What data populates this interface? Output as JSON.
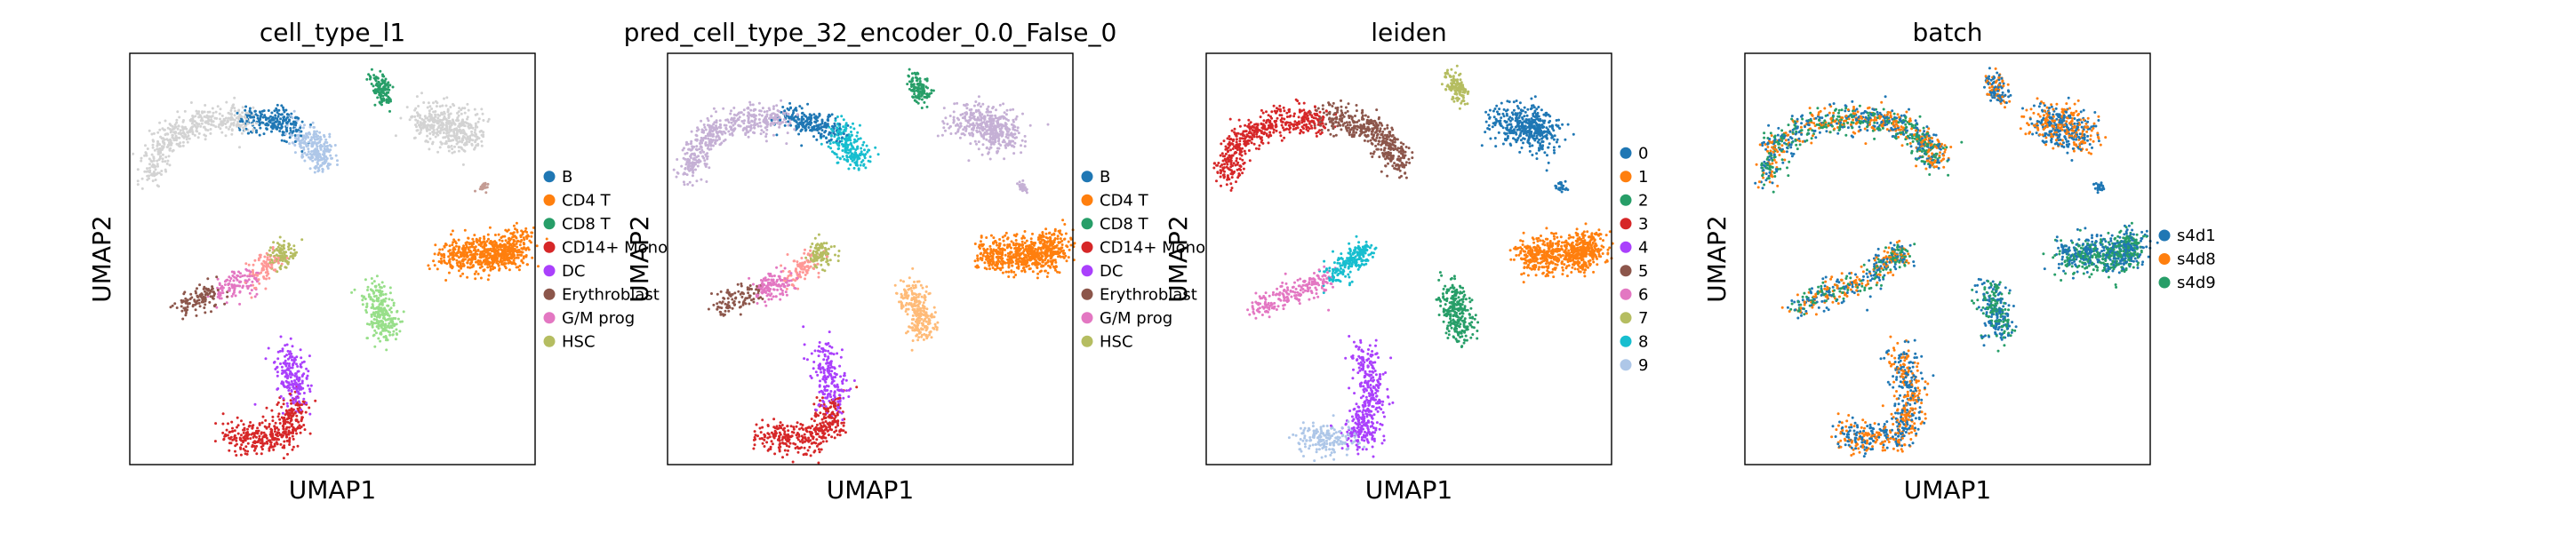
{
  "figure": {
    "background": "#ffffff"
  },
  "chart_data": [
    {
      "type": "scatter",
      "title": "cell_type_l1",
      "xlabel": "UMAP1",
      "ylabel": "UMAP2",
      "grid": false,
      "legend_placement": "right",
      "legend": [
        {
          "label": "B",
          "color": "#1f77b4"
        },
        {
          "label": "CD4 T",
          "color": "#ff7f0e"
        },
        {
          "label": "CD8 T",
          "color": "#279e68"
        },
        {
          "label": "CD14+ Mono",
          "color": "#d62728"
        },
        {
          "label": "DC",
          "color": "#aa40fc"
        },
        {
          "label": "Erythroblast",
          "color": "#8c564b"
        },
        {
          "label": "G/M prog",
          "color": "#e377c2"
        },
        {
          "label": "HSC",
          "color": "#b5bd61"
        }
      ]
    },
    {
      "type": "scatter",
      "title": "pred_cell_type_32_encoder_0.0_False_0",
      "xlabel": "UMAP1",
      "ylabel": "UMAP2",
      "grid": false,
      "legend_placement": "right",
      "legend": [
        {
          "label": "B",
          "color": "#1f77b4"
        },
        {
          "label": "CD4 T",
          "color": "#ff7f0e"
        },
        {
          "label": "CD8 T",
          "color": "#279e68"
        },
        {
          "label": "CD14+ Mono",
          "color": "#d62728"
        },
        {
          "label": "DC",
          "color": "#aa40fc"
        },
        {
          "label": "Erythroblast",
          "color": "#8c564b"
        },
        {
          "label": "G/M prog",
          "color": "#e377c2"
        },
        {
          "label": "HSC",
          "color": "#b5bd61"
        }
      ]
    },
    {
      "type": "scatter",
      "title": "leiden",
      "xlabel": "UMAP1",
      "ylabel": "UMAP2",
      "grid": false,
      "legend_placement": "right",
      "legend": [
        {
          "label": "0",
          "color": "#1f77b4"
        },
        {
          "label": "1",
          "color": "#ff7f0e"
        },
        {
          "label": "2",
          "color": "#279e68"
        },
        {
          "label": "3",
          "color": "#d62728"
        },
        {
          "label": "4",
          "color": "#aa40fc"
        },
        {
          "label": "5",
          "color": "#8c564b"
        },
        {
          "label": "6",
          "color": "#e377c2"
        },
        {
          "label": "7",
          "color": "#b5bd61"
        },
        {
          "label": "8",
          "color": "#17becf"
        },
        {
          "label": "9",
          "color": "#aec7e8"
        }
      ]
    },
    {
      "type": "scatter",
      "title": "batch",
      "xlabel": "UMAP1",
      "ylabel": "UMAP2",
      "grid": false,
      "legend_placement": "right",
      "legend": [
        {
          "label": "s4d1",
          "color": "#1f77b4"
        },
        {
          "label": "s4d8",
          "color": "#ff7f0e"
        },
        {
          "label": "s4d9",
          "color": "#279e68"
        }
      ]
    }
  ]
}
